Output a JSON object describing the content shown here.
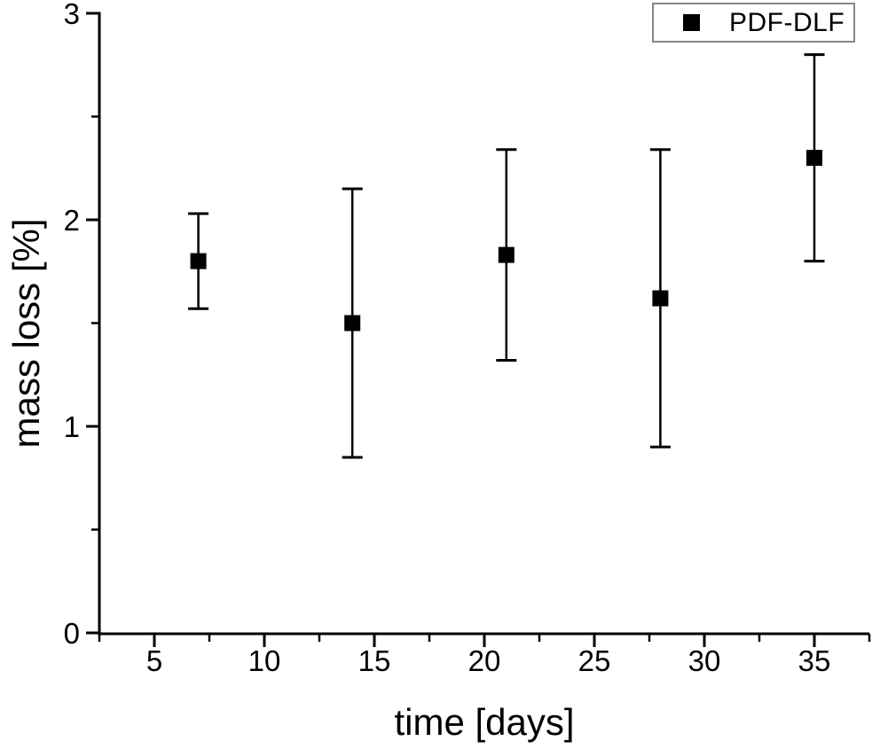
{
  "chart_data": {
    "type": "scatter",
    "title": "",
    "xlabel": "time [days]",
    "ylabel": "mass loss [%]",
    "xlim": [
      2.5,
      37.5
    ],
    "ylim": [
      0,
      3
    ],
    "x_major_ticks": [
      5,
      10,
      15,
      20,
      25,
      30,
      35
    ],
    "x_minor_ticks": [
      2.5,
      7.5,
      12.5,
      17.5,
      22.5,
      27.5,
      32.5,
      37.5
    ],
    "y_major_ticks": [
      0,
      1,
      2,
      3
    ],
    "y_minor_ticks": [
      0.5,
      1.5,
      2.5
    ],
    "grid": false,
    "legend_position": "top-right",
    "axis_color": "#000000",
    "background_color": "#ffffff",
    "legend_border_color": "#878787",
    "series": [
      {
        "name": "PDF-DLF",
        "marker": "filled-square",
        "color": "#000000",
        "x": [
          7,
          14,
          21,
          28,
          35
        ],
        "y": [
          1.8,
          1.5,
          1.83,
          1.62,
          2.3
        ],
        "y_err": [
          0.23,
          0.65,
          0.51,
          0.72,
          0.5
        ]
      }
    ]
  }
}
